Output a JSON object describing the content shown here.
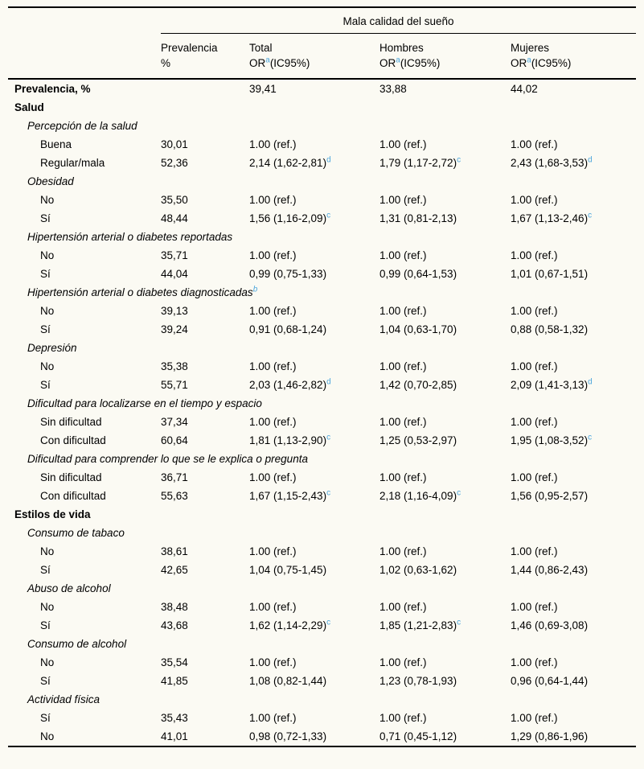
{
  "page": {
    "background": "#fbfaf3",
    "footnote_color": "#4da6dc"
  },
  "table": {
    "spanner": "Mala calidad del sueño",
    "columns": [
      {
        "top": "Prevalencia",
        "bottom": "%"
      },
      {
        "top": "Total",
        "bottom": "OR^a(IC95%)"
      },
      {
        "top": "Hombres",
        "bottom": "OR^a(IC95%)"
      },
      {
        "top": "Mujeres",
        "bottom": "OR^a(IC95%)"
      }
    ],
    "rows": [
      {
        "style": "bold",
        "label": "Prevalencia, %",
        "cells": [
          "",
          "39,41",
          "33,88",
          "44,02"
        ]
      },
      {
        "style": "bold",
        "label": "Salud",
        "cells": [
          "",
          "",
          "",
          ""
        ]
      },
      {
        "style": "italic",
        "label": "Percepción de la salud",
        "cells": [
          "",
          "",
          "",
          ""
        ]
      },
      {
        "style": "item",
        "label": "Buena",
        "cells": [
          "30,01",
          "1.00 (ref.)",
          "1.00 (ref.)",
          "1.00 (ref.)"
        ]
      },
      {
        "style": "item",
        "label": "Regular/mala",
        "cells": [
          "52,36",
          "2,14 (1,62-2,81)^d",
          "1,79 (1,17-2,72)^c",
          "2,43 (1,68-3,53)^d"
        ]
      },
      {
        "style": "italic",
        "label": "Obesidad",
        "cells": [
          "",
          "",
          "",
          ""
        ]
      },
      {
        "style": "item",
        "label": "No",
        "cells": [
          "35,50",
          "1.00 (ref.)",
          "1.00 (ref.)",
          "1.00 (ref.)"
        ]
      },
      {
        "style": "item",
        "label": "Sí",
        "cells": [
          "48,44",
          "1,56 (1,16-2,09)^c",
          "1,31 (0,81-2,13)",
          "1,67 (1,13-2,46)^c"
        ]
      },
      {
        "style": "italic",
        "label": "Hipertensión arterial o diabetes reportadas",
        "cells": [
          "",
          "",
          "",
          ""
        ]
      },
      {
        "style": "item",
        "label": "No",
        "cells": [
          "35,71",
          "1.00 (ref.)",
          "1.00 (ref.)",
          "1.00 (ref.)"
        ]
      },
      {
        "style": "item",
        "label": "Sí",
        "cells": [
          "44,04",
          "0,99 (0,75-1,33)",
          "0,99 (0,64-1,53)",
          "1,01 (0,67-1,51)"
        ]
      },
      {
        "style": "italic",
        "label": "Hipertensión arterial o diabetes diagnosticadas^b",
        "cells": [
          "",
          "",
          "",
          ""
        ]
      },
      {
        "style": "item",
        "label": "No",
        "cells": [
          "39,13",
          "1.00 (ref.)",
          "1.00 (ref.)",
          "1.00 (ref.)"
        ]
      },
      {
        "style": "item",
        "label": "Sí",
        "cells": [
          "39,24",
          "0,91 (0,68-1,24)",
          "1,04 (0,63-1,70)",
          "0,88 (0,58-1,32)"
        ]
      },
      {
        "style": "italic",
        "label": "Depresión",
        "cells": [
          "",
          "",
          "",
          ""
        ]
      },
      {
        "style": "item",
        "label": "No",
        "cells": [
          "35,38",
          "1.00 (ref.)",
          "1.00 (ref.)",
          "1.00 (ref.)"
        ]
      },
      {
        "style": "item",
        "label": "Sí",
        "cells": [
          "55,71",
          "2,03 (1,46-2,82)^d",
          "1,42 (0,70-2,85)",
          "2,09 (1,41-3,13)^d"
        ]
      },
      {
        "style": "italic",
        "label": "Dificultad para localizarse en el tiempo y espacio",
        "cells": [
          "",
          "",
          "",
          ""
        ]
      },
      {
        "style": "item",
        "label": "Sin dificultad",
        "cells": [
          "37,34",
          "1.00 (ref.)",
          "1.00 (ref.)",
          "1.00 (ref.)"
        ]
      },
      {
        "style": "item",
        "label": "Con dificultad",
        "cells": [
          "60,64",
          "1,81 (1,13-2,90)^c",
          "1,25 (0,53-2,97)",
          "1,95 (1,08-3,52)^c"
        ]
      },
      {
        "style": "italic",
        "label": "Dificultad para comprender lo que se le explica o pregunta",
        "cells": [
          "",
          "",
          "",
          ""
        ]
      },
      {
        "style": "item",
        "label": "Sin dificultad",
        "cells": [
          "36,71",
          "1.00 (ref.)",
          "1.00 (ref.)",
          "1.00 (ref.)"
        ]
      },
      {
        "style": "item",
        "label": "Con dificultad",
        "cells": [
          "55,63",
          "1,67 (1,15-2,43)^c",
          "2,18 (1,16-4,09)^c",
          "1,56 (0,95-2,57)"
        ]
      },
      {
        "style": "bold",
        "label": "Estilos de vida",
        "cells": [
          "",
          "",
          "",
          ""
        ]
      },
      {
        "style": "italic",
        "label": "Consumo de tabaco",
        "cells": [
          "",
          "",
          "",
          ""
        ]
      },
      {
        "style": "item",
        "label": "No",
        "cells": [
          "38,61",
          "1.00 (ref.)",
          "1.00 (ref.)",
          "1.00 (ref.)"
        ]
      },
      {
        "style": "item",
        "label": "Sí",
        "cells": [
          "42,65",
          "1,04 (0,75-1,45)",
          "1,02 (0,63-1,62)",
          "1,44 (0,86-2,43)"
        ]
      },
      {
        "style": "italic",
        "label": "Abuso de alcohol",
        "cells": [
          "",
          "",
          "",
          ""
        ]
      },
      {
        "style": "item",
        "label": "No",
        "cells": [
          "38,48",
          "1.00 (ref.)",
          "1.00 (ref.)",
          "1.00 (ref.)"
        ]
      },
      {
        "style": "item",
        "label": "Sí",
        "cells": [
          "43,68",
          "1,62 (1,14-2,29)^c",
          "1,85 (1,21-2,83)^c",
          "1,46 (0,69-3,08)"
        ]
      },
      {
        "style": "italic",
        "label": "Consumo de alcohol",
        "cells": [
          "",
          "",
          "",
          ""
        ]
      },
      {
        "style": "item",
        "label": "No",
        "cells": [
          "35,54",
          "1.00 (ref.)",
          "1.00 (ref.)",
          "1.00 (ref.)"
        ]
      },
      {
        "style": "item",
        "label": "Sí",
        "cells": [
          "41,85",
          "1,08 (0,82-1,44)",
          "1,23 (0,78-1,93)",
          "0,96 (0,64-1,44)"
        ]
      },
      {
        "style": "italic",
        "label": "Actividad física",
        "cells": [
          "",
          "",
          "",
          ""
        ]
      },
      {
        "style": "item",
        "label": "Sí",
        "cells": [
          "35,43",
          "1.00 (ref.)",
          "1.00 (ref.)",
          "1.00 (ref.)"
        ]
      },
      {
        "style": "item",
        "label": "No",
        "cells": [
          "41,01",
          "0,98 (0,72-1,33)",
          "0,71 (0,45-1,12)",
          "1,29 (0,86-1,96)"
        ]
      }
    ]
  }
}
